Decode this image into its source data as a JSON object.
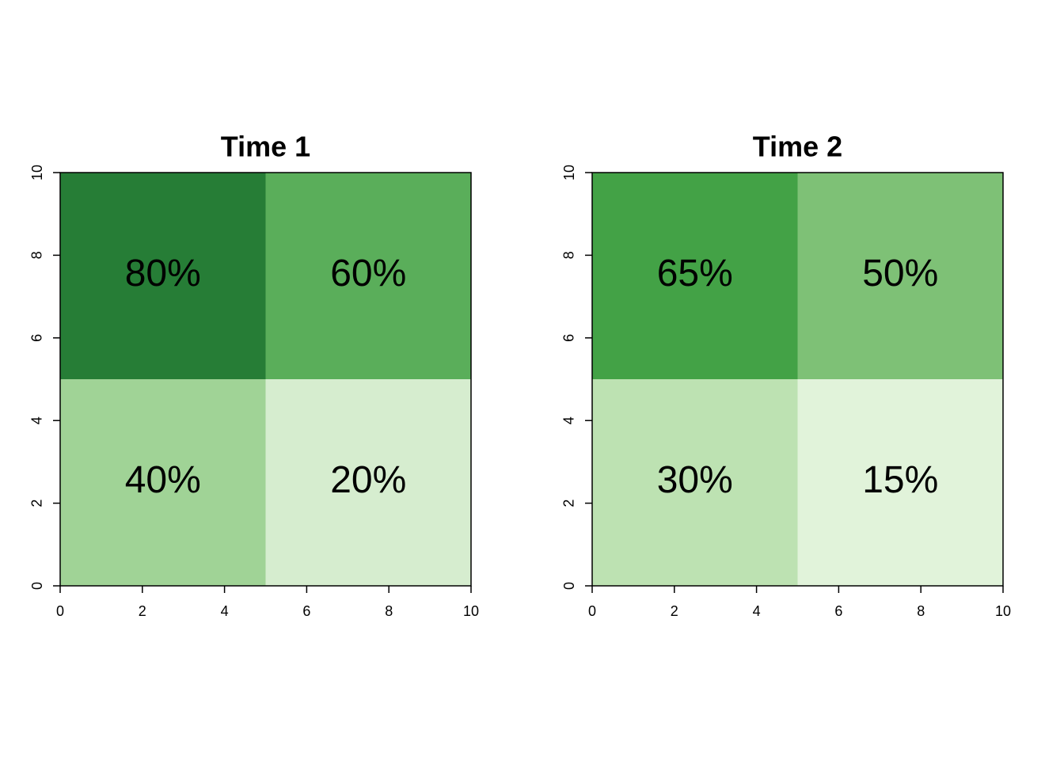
{
  "chart_data": [
    {
      "type": "heatmap",
      "title": "Time 1",
      "xbins": [
        0,
        5,
        10
      ],
      "ybins": [
        0,
        5,
        10
      ],
      "values": [
        [
          40,
          20
        ],
        [
          80,
          60
        ]
      ],
      "value_labels": [
        [
          "40%",
          "20%"
        ],
        [
          "80%",
          "60%"
        ]
      ],
      "colors": [
        [
          "#a0d396",
          "#d6edcf"
        ],
        [
          "#267d36",
          "#5aae5a"
        ]
      ],
      "xlim": [
        0,
        10
      ],
      "ylim": [
        0,
        10
      ],
      "xticks": [
        0,
        2,
        4,
        6,
        8,
        10
      ],
      "yticks": [
        0,
        2,
        4,
        6,
        8,
        10
      ]
    },
    {
      "type": "heatmap",
      "title": "Time 2",
      "xbins": [
        0,
        5,
        10
      ],
      "ybins": [
        0,
        5,
        10
      ],
      "values": [
        [
          30,
          15
        ],
        [
          65,
          50
        ]
      ],
      "value_labels": [
        [
          "30%",
          "15%"
        ],
        [
          "65%",
          "50%"
        ]
      ],
      "colors": [
        [
          "#bde2b2",
          "#e1f3da"
        ],
        [
          "#43a246",
          "#7ec176"
        ]
      ],
      "xlim": [
        0,
        10
      ],
      "ylim": [
        0,
        10
      ],
      "xticks": [
        0,
        2,
        4,
        6,
        8,
        10
      ],
      "yticks": [
        0,
        2,
        4,
        6,
        8,
        10
      ]
    }
  ]
}
